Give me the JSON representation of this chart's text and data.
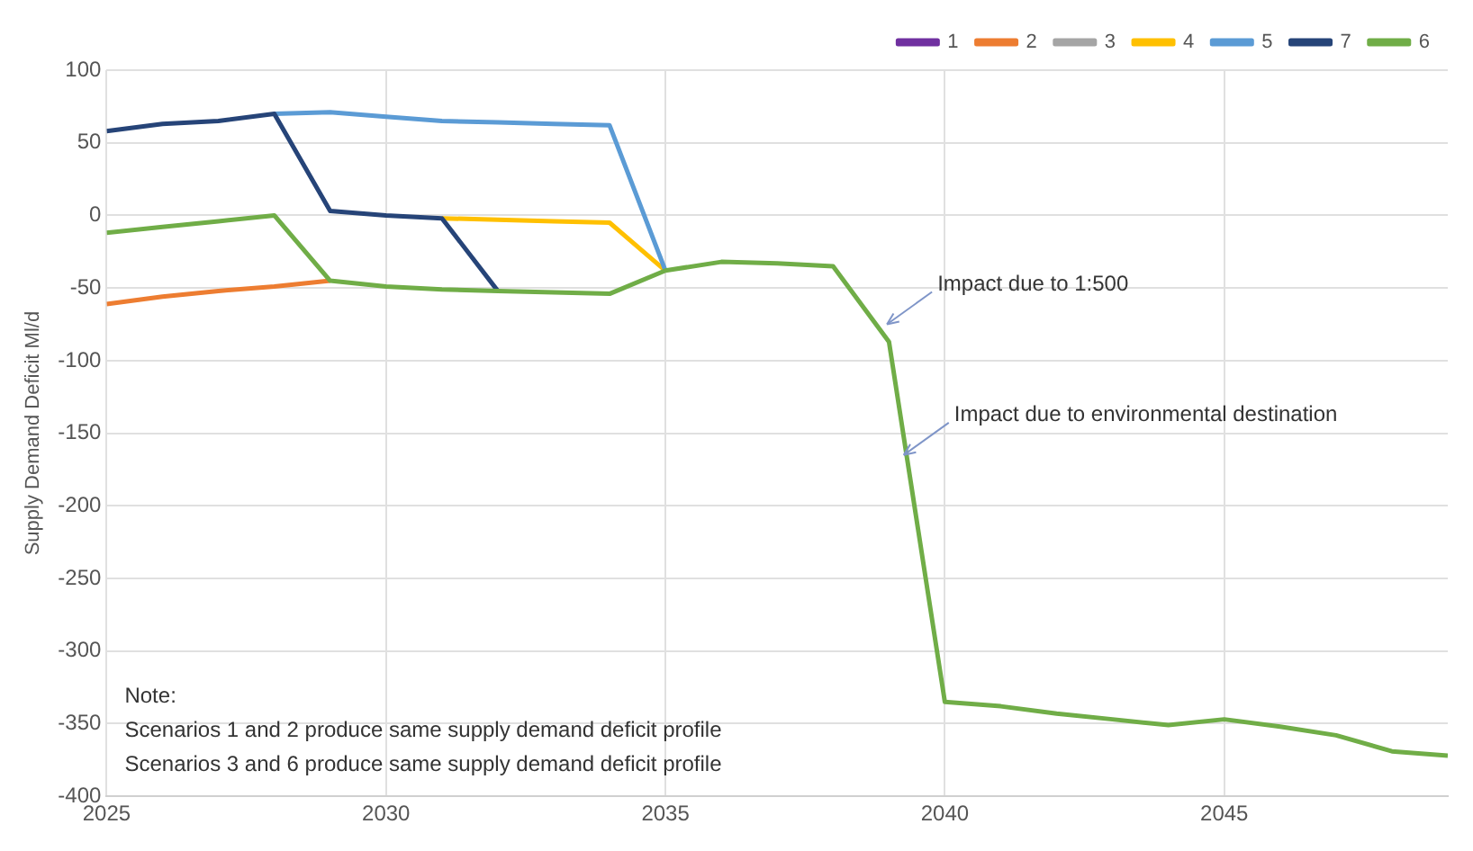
{
  "chart_data": {
    "type": "line",
    "ylabel": "Supply Demand Deficit Ml/d",
    "x": [
      2025,
      2026,
      2027,
      2028,
      2029,
      2030,
      2031,
      2032,
      2033,
      2034,
      2035,
      2036,
      2037,
      2038,
      2039,
      2040,
      2041,
      2042,
      2043,
      2044,
      2045,
      2046,
      2047,
      2048,
      2049
    ],
    "series": [
      {
        "name": "1",
        "color": "#7030a0",
        "values": [
          null,
          null,
          null,
          null,
          null,
          null,
          null,
          null,
          null,
          null,
          null,
          null,
          null,
          null,
          null,
          null,
          null,
          null,
          null,
          null,
          null,
          null,
          null,
          null,
          null
        ]
      },
      {
        "name": "2",
        "color": "#ed7d31",
        "values": [
          -61,
          -56,
          -52,
          -49,
          -45,
          null,
          null,
          null,
          null,
          null,
          null,
          null,
          null,
          null,
          null,
          null,
          null,
          null,
          null,
          null,
          null,
          null,
          null,
          null,
          null
        ]
      },
      {
        "name": "3",
        "color": "#a5a5a5",
        "values": [
          null,
          null,
          null,
          null,
          null,
          null,
          null,
          null,
          null,
          null,
          null,
          null,
          null,
          null,
          null,
          null,
          null,
          null,
          null,
          null,
          null,
          null,
          null,
          null,
          null
        ]
      },
      {
        "name": "4",
        "color": "#ffc000",
        "values": [
          null,
          null,
          null,
          null,
          null,
          null,
          -2,
          -3,
          -4,
          -5,
          -38,
          null,
          null,
          null,
          null,
          null,
          null,
          null,
          null,
          null,
          null,
          null,
          null,
          null,
          null
        ]
      },
      {
        "name": "5",
        "color": "#5b9bd5",
        "values": [
          null,
          null,
          null,
          70,
          71,
          68,
          65,
          64,
          63,
          62,
          -38,
          null,
          null,
          null,
          null,
          null,
          null,
          null,
          null,
          null,
          null,
          null,
          null,
          null,
          null
        ]
      },
      {
        "name": "7",
        "color": "#264478",
        "values": [
          58,
          63,
          65,
          70,
          3,
          0,
          -2,
          -52,
          null,
          null,
          null,
          null,
          null,
          null,
          null,
          null,
          null,
          null,
          null,
          null,
          null,
          null,
          null,
          null,
          null
        ]
      },
      {
        "name": "6",
        "color": "#70ad47",
        "values": [
          -12,
          -8,
          -4,
          0,
          -45,
          -49,
          -51,
          -52,
          -53,
          -54,
          -38,
          -32,
          -33,
          -35,
          -87,
          -335,
          -338,
          -343,
          -347,
          -351,
          -347,
          -352,
          -358,
          -369,
          -372
        ]
      }
    ],
    "xlim": [
      2025,
      2049
    ],
    "xticks": [
      2025,
      2030,
      2035,
      2040,
      2045
    ],
    "ylim": [
      -400,
      100
    ],
    "yticks": [
      -400,
      -350,
      -300,
      -250,
      -200,
      -150,
      -100,
      -50,
      0,
      50,
      100
    ],
    "grid": true,
    "legend": "top right",
    "marker": "none",
    "line_style": "solid",
    "annotations": [
      {
        "text": "Impact due to 1:500",
        "x": 2038.9,
        "y": -75
      },
      {
        "text": "Impact due to environmental destination",
        "x": 2039.2,
        "y": -165
      },
      "Note:",
      "Scenarios 1 and 2 produce same supply demand deficit profile",
      "Scenarios 3 and 6 produce same supply demand deficit profile"
    ]
  }
}
